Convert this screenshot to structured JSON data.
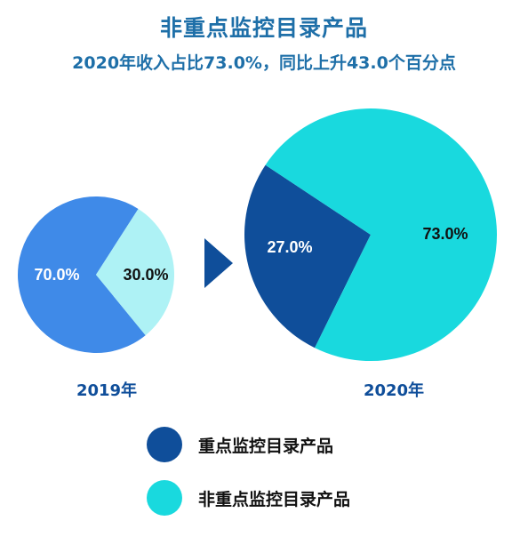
{
  "title": "非重点监控目录产品",
  "subtitle": "2020年收入占比73.0%，同比上升43.0个百分点",
  "colors": {
    "key_2019": "#3f8ae8",
    "nonkey_2019": "#aef2f5",
    "key_2020": "#0f4e9a",
    "nonkey_2020": "#19d9de",
    "arrow": "#0f4e9a",
    "year_text": "#0f4e9a"
  },
  "chart_data": [
    {
      "type": "pie",
      "label": "2019年",
      "slices": [
        {
          "name": "重点监控目录产品",
          "value": 70.0,
          "label": "70.0%"
        },
        {
          "name": "非重点监控目录产品",
          "value": 30.0,
          "label": "30.0%"
        }
      ]
    },
    {
      "type": "pie",
      "label": "2020年",
      "slices": [
        {
          "name": "重点监控目录产品",
          "value": 27.0,
          "label": "27.0%"
        },
        {
          "name": "非重点监控目录产品",
          "value": 73.0,
          "label": "73.0%"
        }
      ]
    }
  ],
  "legend": [
    {
      "label": "重点监控目录产品",
      "color": "#0f4e9a"
    },
    {
      "label": "非重点监控目录产品",
      "color": "#19d9de"
    }
  ]
}
